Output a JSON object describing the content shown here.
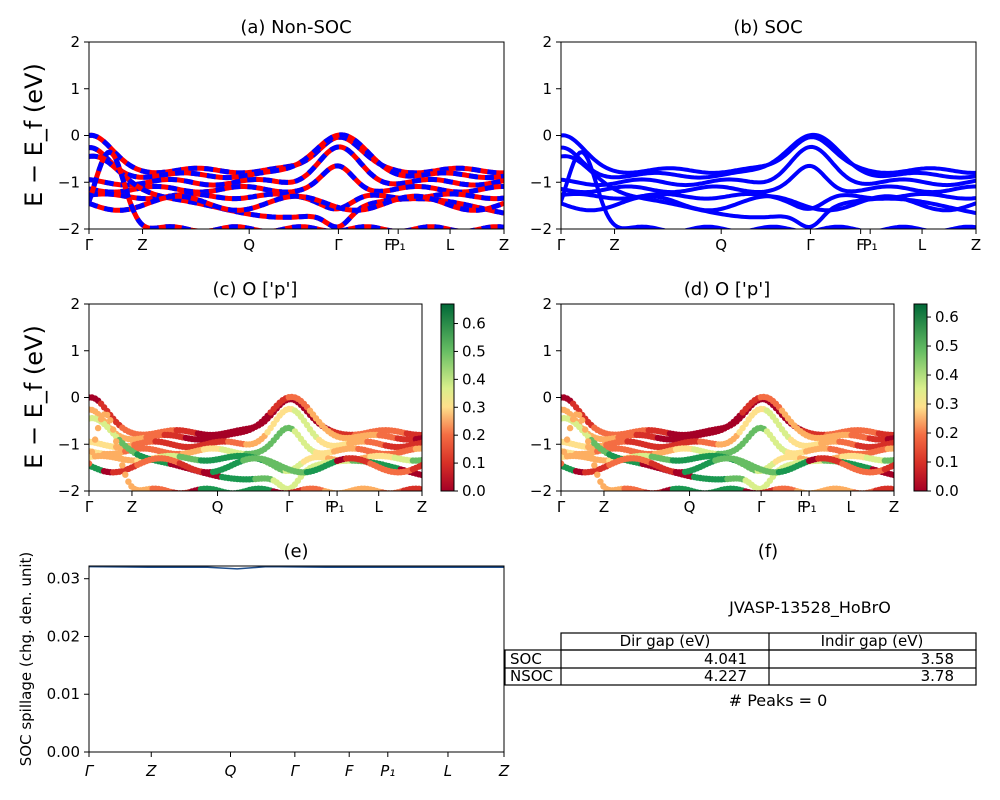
{
  "figure": {
    "ylabel_main": "E − E_f (eV)",
    "ylabel_spillage": "SOC spillage (chg. den. unit)"
  },
  "kpath_labels": [
    "Γ",
    "Z",
    "Q",
    "Γ",
    "F",
    "P₁",
    "L",
    "Z"
  ],
  "chart_data": [
    {
      "id": "a",
      "type": "line",
      "title": "(a) Non-SOC",
      "ylim": [
        -2,
        2
      ],
      "yticks": [
        "2",
        "1",
        "0",
        "−1",
        "−2"
      ],
      "xticks": [
        "Γ",
        "Z",
        "Q",
        "Γ",
        "F",
        "P₁",
        "L",
        "Z"
      ],
      "series": [
        {
          "color": "#ff0000",
          "values": "spin-up bands (red)"
        },
        {
          "color": "#0000ff",
          "values": "spin-down bands (blue)"
        }
      ],
      "band_edges": {
        "valence_top_at_gamma": 0.0,
        "flat_band_region": [
          -0.75,
          -1.35
        ]
      }
    },
    {
      "id": "b",
      "type": "line",
      "title": "(b) SOC",
      "ylim": [
        -2,
        2
      ],
      "yticks": [
        "2",
        "1",
        "0",
        "−1",
        "−2"
      ],
      "xticks": [
        "Γ",
        "Z",
        "Q",
        "Γ",
        "F",
        "P₁",
        "L",
        "Z"
      ],
      "series": [
        {
          "color": "#0000ff"
        }
      ]
    },
    {
      "id": "c",
      "type": "scatter",
      "title": "(c)  O ['p']",
      "ylim": [
        -2,
        2
      ],
      "yticks": [
        "2",
        "1",
        "0",
        "−1",
        "−2"
      ],
      "xticks": [
        "Γ",
        "Z",
        "Q",
        "Γ",
        "F",
        "P₁",
        "L",
        "Z"
      ],
      "colorbar": {
        "min": 0.0,
        "max": 0.67,
        "ticks": [
          "0.0",
          "0.1",
          "0.2",
          "0.3",
          "0.4",
          "0.5",
          "0.6"
        ],
        "colormap": "RdYlGn"
      }
    },
    {
      "id": "d",
      "type": "scatter",
      "title": "(d) O ['p']",
      "ylim": [
        -2,
        2
      ],
      "yticks": [
        "2",
        "1",
        "0",
        "−1",
        "−2"
      ],
      "xticks": [
        "Γ",
        "Z",
        "Q",
        "Γ",
        "F",
        "P₁",
        "L",
        "Z"
      ],
      "colorbar": {
        "min": 0.0,
        "max": 0.645,
        "ticks": [
          "0.0",
          "0.1",
          "0.2",
          "0.3",
          "0.4",
          "0.5",
          "0.6"
        ],
        "colormap": "RdYlGn"
      }
    },
    {
      "id": "e",
      "type": "line",
      "title": "(e)",
      "ylabel": "SOC spillage (chg. den. unit)",
      "ylim": [
        0.0,
        0.0322
      ],
      "yticks": [
        "0.03",
        "0.02",
        "0.01",
        "0.00"
      ],
      "ytick_values": [
        0.03,
        0.02,
        0.01,
        0.0
      ],
      "xticks": [
        "Γ",
        "Z",
        "Q",
        "Γ",
        "F",
        "P₁",
        "L",
        "Z"
      ],
      "series": [
        {
          "color": "#1f4e8c",
          "x": [
            0,
            1,
            2,
            2.5,
            3,
            4,
            5,
            6,
            7
          ],
          "values": [
            0.0321,
            0.032,
            0.032,
            0.0317,
            0.0321,
            0.032,
            0.032,
            0.032,
            0.032
          ]
        }
      ]
    },
    {
      "id": "f",
      "type": "table",
      "title": "(f)",
      "material": "JVASP-13528_HoBrO",
      "columns": [
        "",
        "Dir gap (eV)",
        "Indir gap (eV)"
      ],
      "rows": [
        [
          "SOC",
          "4.041",
          "3.58"
        ],
        [
          "NSOC",
          "4.227",
          "3.78"
        ]
      ],
      "peaks": "# Peaks = 0"
    }
  ]
}
